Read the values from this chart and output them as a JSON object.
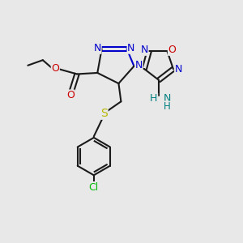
{
  "bg_color": "#e8e8e8",
  "bond_color": "#1a1a1a",
  "colors": {
    "N": "#0000cc",
    "O": "#cc0000",
    "S": "#b8b800",
    "Cl": "#00bb00",
    "NH": "#008080",
    "H": "#008080",
    "C": "#1a1a1a"
  }
}
